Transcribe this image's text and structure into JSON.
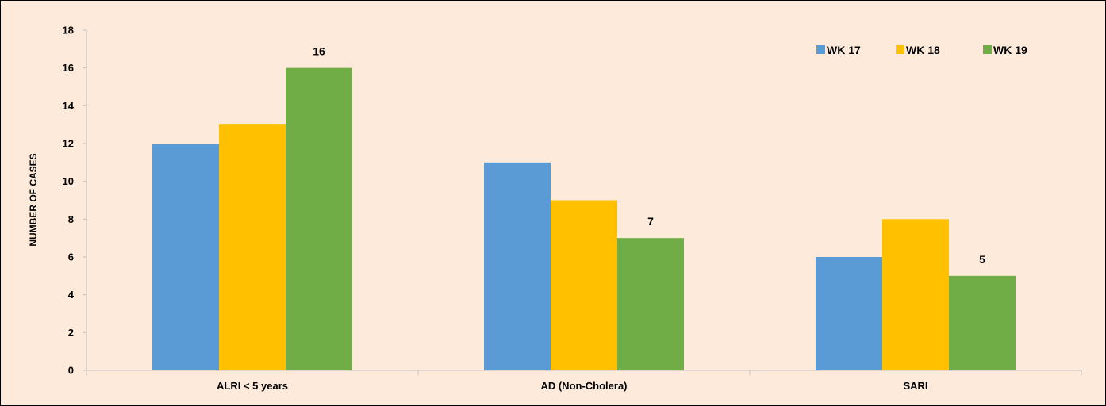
{
  "chart_data": {
    "type": "bar",
    "title": "",
    "xlabel": "",
    "ylabel": "NUMBER OF CASES",
    "ylim": [
      0,
      18
    ],
    "yticks": [
      0,
      2,
      4,
      6,
      8,
      10,
      12,
      14,
      16,
      18
    ],
    "categories": [
      "ALRI < 5 years",
      "AD (Non-Cholera)",
      "SARI"
    ],
    "series": [
      {
        "name": "WK 17",
        "color": "#5B9BD5",
        "values": [
          12,
          11,
          6
        ]
      },
      {
        "name": "WK 18",
        "color": "#FFC000",
        "values": [
          13,
          9,
          8
        ]
      },
      {
        "name": "WK 19",
        "color": "#70AD47",
        "values": [
          16,
          7,
          5
        ]
      }
    ],
    "data_labels": [
      {
        "series": "WK 19",
        "category": "ALRI < 5 years",
        "text": "16"
      },
      {
        "series": "WK 19",
        "category": "AD (Non-Cholera)",
        "text": "7"
      },
      {
        "series": "WK 19",
        "category": "SARI",
        "text": "5"
      }
    ],
    "legend_position": "top-right",
    "grid": false,
    "background": "#FDEADA"
  }
}
